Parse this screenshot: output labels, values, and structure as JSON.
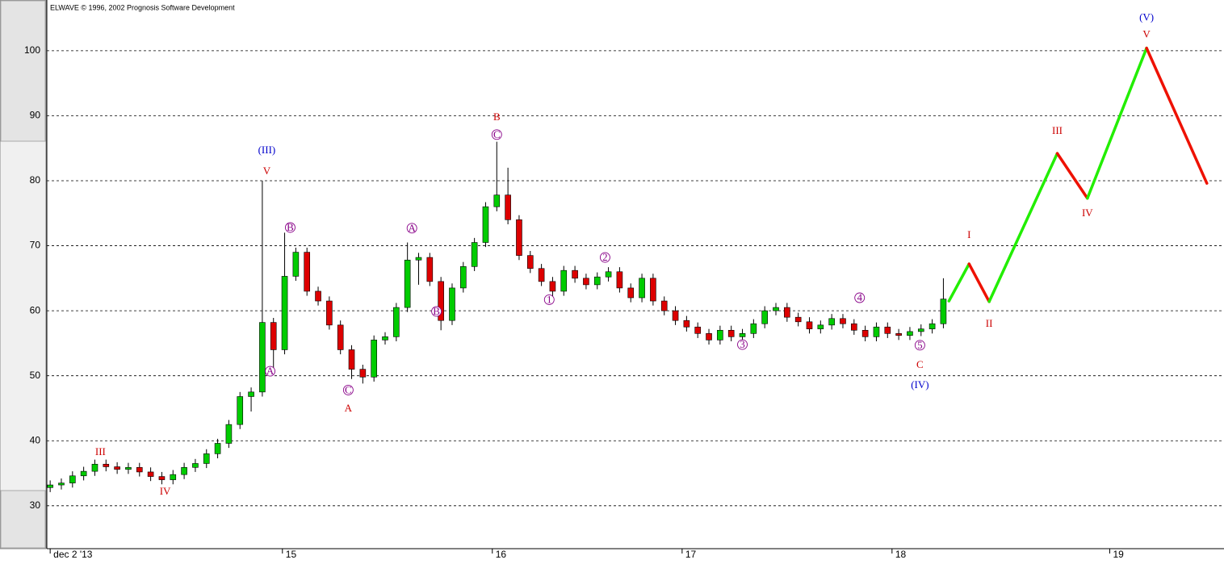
{
  "chart_data": {
    "type": "candlestick",
    "title": "ELWAVE © 1996, 2002 Prognosis Software Development",
    "xlim": [
      -0.3,
      104.7
    ],
    "ylim": [
      23.4,
      107.8
    ],
    "yticks": [
      30,
      40,
      50,
      60,
      70,
      80,
      90,
      100
    ],
    "xticks": [
      {
        "value": 0,
        "label": "dec 2 '13"
      },
      {
        "value": 20.8,
        "label": "15"
      },
      {
        "value": 39.6,
        "label": "16"
      },
      {
        "value": 56.6,
        "label": "17"
      },
      {
        "value": 75.4,
        "label": "18"
      },
      {
        "value": 94.9,
        "label": "19"
      }
    ],
    "grid": true,
    "up_color": "#00cc00",
    "down_color": "#dd0000",
    "open": [
      32.8,
      33.2,
      33.5,
      34.6,
      35.3,
      36.4,
      36.0,
      35.6,
      35.9,
      35.2,
      34.5,
      34.0,
      34.8,
      35.9,
      36.5,
      38.0,
      39.6,
      42.5,
      46.8,
      47.5,
      58.2,
      54.0,
      65.3,
      69.0,
      63.0,
      61.5,
      57.8,
      54.0,
      51.0,
      49.8,
      55.5,
      56.0,
      60.5,
      67.8,
      68.2,
      64.5,
      58.5,
      63.5,
      66.8,
      70.5,
      76.0,
      77.8,
      74.0,
      68.5,
      66.5,
      64.5,
      63.0,
      66.2,
      65.0,
      64.0,
      65.2,
      66.0,
      63.5,
      62.0,
      65.0,
      61.5,
      60.0,
      58.5,
      57.5,
      56.5,
      55.5,
      57.0,
      56.0,
      56.5,
      58.0,
      60.0,
      60.5,
      59.0,
      58.3,
      57.2,
      57.8,
      58.8,
      58.0,
      57.0,
      56.0,
      57.5,
      56.5,
      56.2,
      56.8,
      57.2,
      58.0
    ],
    "high": [
      33.9,
      34.2,
      35.3,
      36.0,
      37.1,
      37.1,
      36.7,
      36.6,
      36.6,
      35.9,
      35.2,
      35.5,
      36.6,
      37.2,
      38.7,
      40.3,
      43.2,
      47.5,
      48.2,
      80,
      58.9,
      72,
      69.7,
      69.7,
      63.7,
      62.2,
      58.5,
      54.7,
      51.7,
      56.2,
      56.7,
      61.2,
      70.5,
      68.9,
      68.9,
      65.2,
      64.2,
      67.5,
      71.2,
      76.7,
      86,
      82,
      74.7,
      69.2,
      67.2,
      65.2,
      66.9,
      66.9,
      65.7,
      65.9,
      66.7,
      66.7,
      64.2,
      65.7,
      65.7,
      62.2,
      60.7,
      59.2,
      58.2,
      57.2,
      57.7,
      57.7,
      57.2,
      58.7,
      60.7,
      61.2,
      61.2,
      59.7,
      59.0,
      58.5,
      59.5,
      59.5,
      58.7,
      57.7,
      58.2,
      58.2,
      57.2,
      57.5,
      57.9,
      58.7,
      65
    ],
    "low": [
      32.1,
      32.5,
      32.8,
      33.9,
      34.6,
      35.3,
      34.9,
      34.9,
      34.5,
      33.8,
      33.3,
      33.3,
      34.1,
      35.2,
      35.8,
      37.3,
      38.9,
      41.8,
      44.5,
      46.8,
      50.5,
      53.3,
      64.6,
      62.3,
      60.8,
      57.1,
      53.3,
      49.5,
      48.8,
      49.1,
      54.8,
      55.3,
      59.8,
      64,
      63.8,
      57.0,
      57.8,
      62.8,
      66.1,
      69.8,
      75.3,
      73.3,
      67.8,
      65.8,
      63.8,
      62.0,
      62.3,
      64.3,
      63.3,
      63.3,
      64.5,
      62.8,
      61.3,
      61.3,
      60.8,
      59.3,
      57.8,
      56.8,
      55.8,
      54.8,
      54.8,
      55.3,
      55.3,
      55.8,
      57.3,
      59.3,
      58.3,
      57.6,
      56.5,
      56.5,
      57.1,
      57.3,
      56.3,
      55.3,
      55.3,
      55.8,
      55.5,
      55.5,
      56.1,
      56.5,
      57.3
    ],
    "close": [
      33.2,
      33.5,
      34.6,
      35.3,
      36.4,
      36.0,
      35.6,
      35.9,
      35.2,
      34.5,
      34.0,
      34.8,
      35.9,
      36.5,
      38.0,
      39.6,
      42.5,
      46.8,
      47.5,
      58.2,
      54.0,
      65.3,
      69.0,
      63.0,
      61.5,
      57.8,
      54.0,
      51.0,
      49.8,
      55.5,
      56.0,
      60.5,
      67.8,
      68.2,
      64.5,
      58.5,
      63.5,
      66.8,
      70.5,
      76.0,
      77.8,
      74.0,
      68.5,
      66.5,
      64.5,
      63.0,
      66.2,
      65.0,
      64.0,
      65.2,
      66.0,
      63.5,
      62.0,
      65.0,
      61.5,
      60.0,
      58.5,
      57.5,
      56.5,
      55.5,
      57.0,
      56.0,
      56.5,
      58.0,
      60.0,
      60.5,
      59.0,
      58.3,
      57.2,
      57.8,
      58.8,
      58.0,
      57.0,
      56.0,
      57.5,
      56.5,
      56.2,
      56.8,
      57.2,
      58.0,
      61.8
    ],
    "projection": {
      "x": [
        80.5,
        82.3,
        84.1,
        90.2,
        92.9,
        98.2,
        103.6
      ],
      "values": [
        61.5,
        67.2,
        61.4,
        84.2,
        77.3,
        100.4,
        79.6
      ],
      "up_color": "#22ee00",
      "down_color": "#ee1100"
    },
    "annotations": [
      {
        "text": "III",
        "x": 4.5,
        "y": 38.3,
        "color": "#cc0000",
        "circled": false
      },
      {
        "text": "IV",
        "x": 10.3,
        "y": 32.2,
        "color": "#cc0000",
        "circled": false
      },
      {
        "text": "(III)",
        "x": 19.4,
        "y": 84.7,
        "color": "#0000cc",
        "circled": false
      },
      {
        "text": "V",
        "x": 19.4,
        "y": 81.5,
        "color": "#cc0000",
        "circled": false
      },
      {
        "text": "A",
        "x": 19.7,
        "y": 50.7,
        "color": "#880088",
        "circled": true
      },
      {
        "text": "B",
        "x": 21.5,
        "y": 72.8,
        "color": "#880088",
        "circled": true
      },
      {
        "text": "C",
        "x": 26.7,
        "y": 47.8,
        "color": "#880088",
        "circled": true
      },
      {
        "text": "A",
        "x": 26.7,
        "y": 45.0,
        "color": "#cc0000",
        "circled": false
      },
      {
        "text": "A",
        "x": 32.4,
        "y": 72.7,
        "color": "#880088",
        "circled": true
      },
      {
        "text": "B",
        "x": 34.6,
        "y": 59.9,
        "color": "#880088",
        "circled": true
      },
      {
        "text": "B",
        "x": 40,
        "y": 89.8,
        "color": "#cc0000",
        "circled": false
      },
      {
        "text": "C",
        "x": 40,
        "y": 87.1,
        "color": "#880088",
        "circled": true
      },
      {
        "text": "1",
        "x": 44.7,
        "y": 61.7,
        "color": "#880088",
        "circled": true
      },
      {
        "text": "2",
        "x": 49.7,
        "y": 68.2,
        "color": "#880088",
        "circled": true
      },
      {
        "text": "3",
        "x": 62.0,
        "y": 54.8,
        "color": "#880088",
        "circled": true
      },
      {
        "text": "4",
        "x": 72.5,
        "y": 62.0,
        "color": "#880088",
        "circled": true
      },
      {
        "text": "5",
        "x": 77.9,
        "y": 54.7,
        "color": "#880088",
        "circled": true
      },
      {
        "text": "C",
        "x": 77.9,
        "y": 51.7,
        "color": "#cc0000",
        "circled": false
      },
      {
        "text": "(IV)",
        "x": 77.9,
        "y": 48.6,
        "color": "#0000cc",
        "circled": false
      },
      {
        "text": "I",
        "x": 82.3,
        "y": 71.7,
        "color": "#cc0000",
        "circled": false
      },
      {
        "text": "II",
        "x": 84.1,
        "y": 58.0,
        "color": "#cc0000",
        "circled": false
      },
      {
        "text": "III",
        "x": 90.2,
        "y": 87.7,
        "color": "#cc0000",
        "circled": false
      },
      {
        "text": "IV",
        "x": 92.9,
        "y": 75.0,
        "color": "#cc0000",
        "circled": false
      },
      {
        "text": "V",
        "x": 98.2,
        "y": 102.5,
        "color": "#cc0000",
        "circled": false
      },
      {
        "text": "(V)",
        "x": 98.2,
        "y": 105.1,
        "color": "#0000cc",
        "circled": false
      }
    ]
  }
}
